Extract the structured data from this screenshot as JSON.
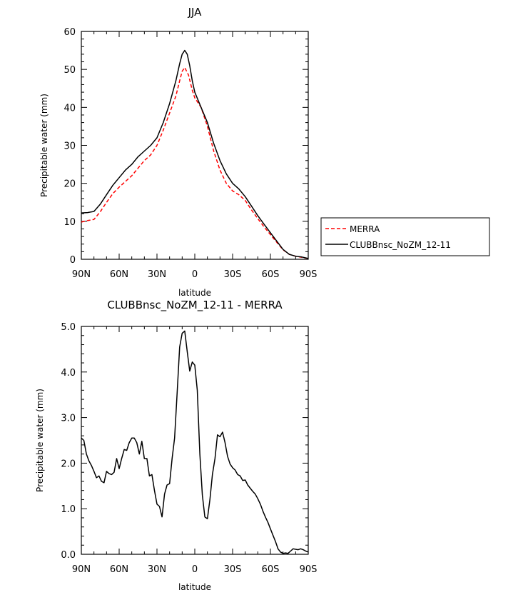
{
  "chart_data": [
    {
      "type": "line",
      "title": "JJA",
      "xlabel": "latitude",
      "ylabel": "Precipitable water (mm)",
      "xlim": [
        90,
        -90
      ],
      "ylim": [
        0,
        60
      ],
      "x_ticks": [
        90,
        60,
        30,
        0,
        -30,
        -60,
        -90
      ],
      "x_tick_labels": [
        "90N",
        "60N",
        "30N",
        "0",
        "30S",
        "60S",
        "90S"
      ],
      "y_ticks": [
        0,
        10,
        20,
        30,
        40,
        50,
        60
      ],
      "y_tick_labels": [
        "0",
        "10",
        "20",
        "30",
        "40",
        "50",
        "60"
      ],
      "legend_position": "right",
      "series": [
        {
          "name": "MERRA",
          "color": "#ff0000",
          "style": "dashed",
          "points": [
            [
              90,
              9.8
            ],
            [
              85,
              10.2
            ],
            [
              80,
              10.5
            ],
            [
              75,
              12.5
            ],
            [
              70,
              15.0
            ],
            [
              65,
              17.3
            ],
            [
              60,
              19.0
            ],
            [
              55,
              20.5
            ],
            [
              50,
              22.0
            ],
            [
              45,
              24.0
            ],
            [
              40,
              26.0
            ],
            [
              35,
              27.5
            ],
            [
              30,
              30.0
            ],
            [
              25,
              34.0
            ],
            [
              20,
              38.5
            ],
            [
              15,
              43.0
            ],
            [
              12,
              47.0
            ],
            [
              10,
              49.5
            ],
            [
              8,
              50.5
            ],
            [
              5,
              48.5
            ],
            [
              2,
              44.5
            ],
            [
              0,
              42.5
            ],
            [
              -5,
              40.0
            ],
            [
              -10,
              35.0
            ],
            [
              -15,
              28.5
            ],
            [
              -20,
              23.5
            ],
            [
              -25,
              20.0
            ],
            [
              -30,
              18.0
            ],
            [
              -35,
              17.0
            ],
            [
              -40,
              15.5
            ],
            [
              -45,
              13.0
            ],
            [
              -50,
              10.7
            ],
            [
              -55,
              8.5
            ],
            [
              -60,
              6.5
            ],
            [
              -65,
              4.5
            ],
            [
              -70,
              2.5
            ],
            [
              -75,
              1.3
            ],
            [
              -80,
              0.8
            ],
            [
              -85,
              0.5
            ],
            [
              -90,
              0.2
            ]
          ]
        },
        {
          "name": "CLUBBnsc_NoZM_12-11",
          "color": "#000000",
          "style": "solid",
          "points": [
            [
              90,
              12.2
            ],
            [
              85,
              12.3
            ],
            [
              80,
              12.6
            ],
            [
              75,
              14.5
            ],
            [
              70,
              17.0
            ],
            [
              65,
              19.5
            ],
            [
              60,
              21.5
            ],
            [
              55,
              23.5
            ],
            [
              50,
              25.0
            ],
            [
              45,
              27.0
            ],
            [
              40,
              28.5
            ],
            [
              35,
              30.0
            ],
            [
              30,
              32.0
            ],
            [
              25,
              36.0
            ],
            [
              20,
              41.0
            ],
            [
              15,
              47.0
            ],
            [
              12,
              51.5
            ],
            [
              10,
              54.0
            ],
            [
              8,
              55.0
            ],
            [
              6,
              54.0
            ],
            [
              4,
              51.0
            ],
            [
              2,
              47.0
            ],
            [
              0,
              44.0
            ],
            [
              -5,
              40.0
            ],
            [
              -10,
              36.0
            ],
            [
              -15,
              30.5
            ],
            [
              -20,
              26.0
            ],
            [
              -25,
              22.5
            ],
            [
              -30,
              20.0
            ],
            [
              -35,
              18.5
            ],
            [
              -40,
              16.5
            ],
            [
              -45,
              14.0
            ],
            [
              -50,
              11.5
            ],
            [
              -55,
              9.2
            ],
            [
              -60,
              7.0
            ],
            [
              -65,
              4.8
            ],
            [
              -70,
              2.6
            ],
            [
              -75,
              1.3
            ],
            [
              -80,
              0.8
            ],
            [
              -85,
              0.6
            ],
            [
              -90,
              0.2
            ]
          ]
        }
      ]
    },
    {
      "type": "line",
      "title": "CLUBBnsc_NoZM_12-11 - MERRA",
      "xlabel": "latitude",
      "ylabel": "Precipitable water (mm)",
      "xlim": [
        90,
        -90
      ],
      "ylim": [
        0,
        5
      ],
      "x_ticks": [
        90,
        60,
        30,
        0,
        -30,
        -60,
        -90
      ],
      "x_tick_labels": [
        "90N",
        "60N",
        "30N",
        "0",
        "30S",
        "60S",
        "90S"
      ],
      "y_ticks": [
        0,
        1,
        2,
        3,
        4,
        5
      ],
      "y_tick_labels": [
        "0.0",
        "1.0",
        "2.0",
        "3.0",
        "4.0",
        "5.0"
      ],
      "series": [
        {
          "color": "#000000",
          "style": "solid",
          "points": [
            [
              90,
              2.55
            ],
            [
              88,
              2.5
            ],
            [
              86,
              2.2
            ],
            [
              84,
              2.05
            ],
            [
              82,
              1.95
            ],
            [
              80,
              1.82
            ],
            [
              78,
              1.68
            ],
            [
              76,
              1.72
            ],
            [
              74,
              1.6
            ],
            [
              72,
              1.57
            ],
            [
              70,
              1.82
            ],
            [
              68,
              1.77
            ],
            [
              66,
              1.75
            ],
            [
              64,
              1.8
            ],
            [
              62,
              2.1
            ],
            [
              60,
              1.88
            ],
            [
              58,
              2.1
            ],
            [
              56,
              2.3
            ],
            [
              54,
              2.28
            ],
            [
              52,
              2.45
            ],
            [
              50,
              2.55
            ],
            [
              48,
              2.55
            ],
            [
              46,
              2.45
            ],
            [
              44,
              2.2
            ],
            [
              42,
              2.48
            ],
            [
              40,
              2.1
            ],
            [
              38,
              2.1
            ],
            [
              36,
              1.72
            ],
            [
              34,
              1.75
            ],
            [
              32,
              1.4
            ],
            [
              30,
              1.1
            ],
            [
              28,
              1.05
            ],
            [
              26,
              0.82
            ],
            [
              24,
              1.32
            ],
            [
              22,
              1.52
            ],
            [
              20,
              1.55
            ],
            [
              18,
              2.1
            ],
            [
              16,
              2.55
            ],
            [
              14,
              3.55
            ],
            [
              12,
              4.55
            ],
            [
              10,
              4.85
            ],
            [
              8,
              4.9
            ],
            [
              6,
              4.45
            ],
            [
              4,
              4.02
            ],
            [
              2,
              4.22
            ],
            [
              0,
              4.15
            ],
            [
              -2,
              3.6
            ],
            [
              -4,
              2.2
            ],
            [
              -6,
              1.3
            ],
            [
              -8,
              0.82
            ],
            [
              -10,
              0.78
            ],
            [
              -12,
              1.2
            ],
            [
              -14,
              1.75
            ],
            [
              -16,
              2.1
            ],
            [
              -18,
              2.62
            ],
            [
              -20,
              2.58
            ],
            [
              -22,
              2.68
            ],
            [
              -24,
              2.45
            ],
            [
              -26,
              2.15
            ],
            [
              -28,
              1.98
            ],
            [
              -30,
              1.9
            ],
            [
              -32,
              1.85
            ],
            [
              -34,
              1.75
            ],
            [
              -36,
              1.72
            ],
            [
              -38,
              1.62
            ],
            [
              -40,
              1.63
            ],
            [
              -42,
              1.52
            ],
            [
              -44,
              1.45
            ],
            [
              -46,
              1.38
            ],
            [
              -48,
              1.32
            ],
            [
              -50,
              1.22
            ],
            [
              -52,
              1.1
            ],
            [
              -54,
              0.95
            ],
            [
              -56,
              0.82
            ],
            [
              -58,
              0.7
            ],
            [
              -60,
              0.56
            ],
            [
              -62,
              0.42
            ],
            [
              -64,
              0.28
            ],
            [
              -66,
              0.12
            ],
            [
              -68,
              0.05
            ],
            [
              -70,
              0.02
            ],
            [
              -72,
              0.03
            ],
            [
              -74,
              0.02
            ],
            [
              -76,
              0.07
            ],
            [
              -78,
              0.12
            ],
            [
              -80,
              0.11
            ],
            [
              -82,
              0.1
            ],
            [
              -84,
              0.12
            ],
            [
              -86,
              0.1
            ],
            [
              -88,
              0.07
            ],
            [
              -90,
              0.05
            ]
          ]
        }
      ]
    }
  ]
}
